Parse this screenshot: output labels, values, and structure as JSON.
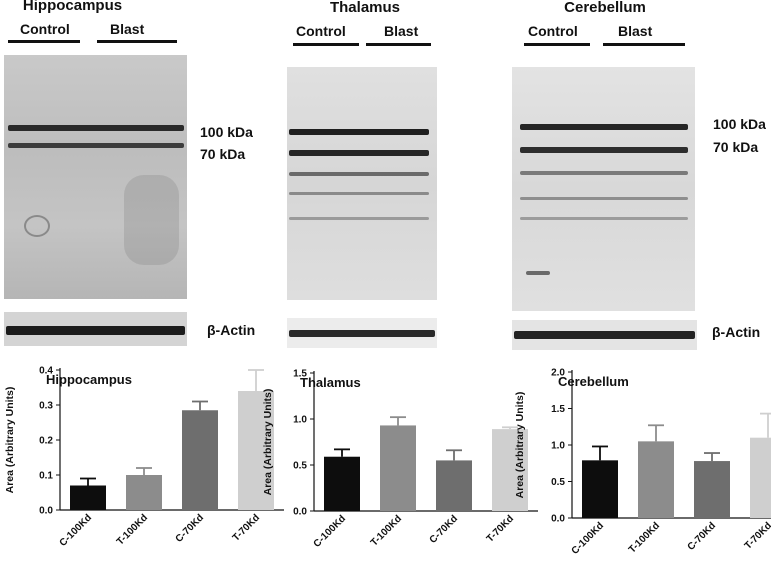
{
  "blots": [
    {
      "title": "Hippocampus",
      "groups": [
        "Control",
        "Blast"
      ],
      "markers": [
        "100 kDa",
        "70 kDa"
      ],
      "loading_control": "β-Actin"
    },
    {
      "title": "Thalamus",
      "groups": [
        "Control",
        "Blast"
      ],
      "markers": [],
      "loading_control": ""
    },
    {
      "title": "Cerebellum",
      "groups": [
        "Control",
        "Blast"
      ],
      "markers": [
        "100 kDa",
        "70 kDa"
      ],
      "loading_control": "β-Actin"
    }
  ],
  "chart_data": [
    {
      "type": "bar",
      "title": "Hippocampus",
      "ylabel": "Area (Arbitrary Units)",
      "categories": [
        "C-100Kd",
        "T-100Kd",
        "C-70Kd",
        "T-70Kd"
      ],
      "values": [
        0.07,
        0.1,
        0.285,
        0.34
      ],
      "errors": [
        0.02,
        0.02,
        0.025,
        0.06
      ],
      "colors": [
        "#0d0d0d",
        "#8c8c8c",
        "#6e6e6e",
        "#cfcfcf"
      ],
      "ylim": [
        0,
        0.4
      ],
      "yticks": [
        "0.0",
        "0.1",
        "0.2",
        "0.3",
        "0.4"
      ]
    },
    {
      "type": "bar",
      "title": "Thalamus",
      "ylabel": "Area (Arbitrary Units)",
      "categories": [
        "C-100Kd",
        "T-100Kd",
        "C-70Kd",
        "T-70Kd"
      ],
      "values": [
        0.59,
        0.93,
        0.55,
        0.89
      ],
      "errors": [
        0.08,
        0.09,
        0.11,
        0.02
      ],
      "colors": [
        "#0d0d0d",
        "#8c8c8c",
        "#6e6e6e",
        "#cfcfcf"
      ],
      "ylim": [
        0,
        1.5
      ],
      "yticks": [
        "0.0",
        "0.5",
        "1.0",
        "1.5"
      ]
    },
    {
      "type": "bar",
      "title": "Cerebellum",
      "ylabel": "Area (Arbitrary Units)",
      "categories": [
        "C-100Kd",
        "T-100Kd",
        "C-70Kd",
        "T-70Kd"
      ],
      "values": [
        0.79,
        1.05,
        0.78,
        1.1
      ],
      "errors": [
        0.19,
        0.22,
        0.11,
        0.33
      ],
      "colors": [
        "#0d0d0d",
        "#8c8c8c",
        "#6e6e6e",
        "#cfcfcf"
      ],
      "ylim": [
        0,
        2.0
      ],
      "yticks": [
        "0.0",
        "0.5",
        "1.0",
        "1.5",
        "2.0"
      ]
    }
  ]
}
